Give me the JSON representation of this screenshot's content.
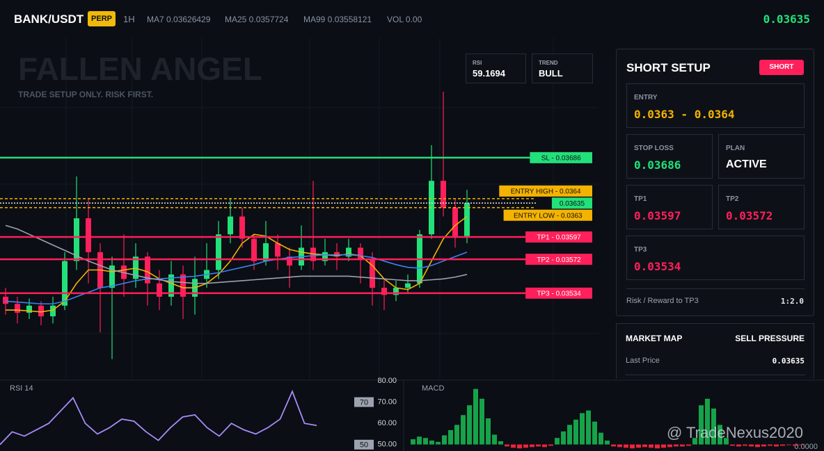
{
  "header": {
    "symbol": "BANK/USDT",
    "badge": "PERP",
    "interval": "1H",
    "ma7": "MA7 0.03626429",
    "ma25": "MA25 0.0357724",
    "ma99": "MA99 0.03558121",
    "vol": "VOL 0.00",
    "last": "0.03635"
  },
  "watermark": {
    "title": "FALLEN ANGEL",
    "subtitle": "TRADE SETUP ONLY. RISK FIRST."
  },
  "stats": [
    {
      "label": "RSI",
      "value": "59.1694"
    },
    {
      "label": "TREND",
      "value": "BULL"
    }
  ],
  "chart_data": [
    {
      "type": "candlestick",
      "up_color": "#22e07a",
      "down_color": "#ff1f5a",
      "ylim": [
        0.03438,
        0.0382
      ],
      "open": [
        0.0353,
        0.03522,
        0.03512,
        0.0352,
        0.03508,
        0.0352,
        0.0357,
        0.03618,
        0.0358,
        0.0354,
        0.03565,
        0.0355,
        0.03575,
        0.03545,
        0.0353,
        0.03555,
        0.0353,
        0.0355,
        0.0356,
        0.036,
        0.0362,
        0.03595,
        0.0357,
        0.0359,
        0.03575,
        0.03565,
        0.03585,
        0.0357,
        0.0358,
        0.03575,
        0.03585,
        0.03572,
        0.0354,
        0.03532,
        0.0354,
        0.03545,
        0.036,
        0.0366,
        0.0363,
        0.03598
      ],
      "high": [
        0.0354,
        0.0353,
        0.03528,
        0.03525,
        0.0353,
        0.0358,
        0.03665,
        0.0364,
        0.0359,
        0.03575,
        0.036,
        0.0359,
        0.0358,
        0.0356,
        0.0357,
        0.03565,
        0.03575,
        0.0359,
        0.03615,
        0.0364,
        0.0363,
        0.036,
        0.03615,
        0.036,
        0.03585,
        0.0361,
        0.0366,
        0.03595,
        0.0359,
        0.03595,
        0.0359,
        0.0358,
        0.0355,
        0.03548,
        0.03555,
        0.03605,
        0.037,
        0.0376,
        0.0364,
        0.0365
      ],
      "low": [
        0.0351,
        0.035,
        0.03505,
        0.03498,
        0.035,
        0.03515,
        0.0356,
        0.03545,
        0.0349,
        0.0346,
        0.0353,
        0.0354,
        0.0352,
        0.03515,
        0.0352,
        0.03505,
        0.0351,
        0.0354,
        0.0355,
        0.0359,
        0.03585,
        0.0356,
        0.03565,
        0.0356,
        0.0354,
        0.0356,
        0.0356,
        0.03565,
        0.0356,
        0.0357,
        0.03545,
        0.0352,
        0.03515,
        0.03525,
        0.03535,
        0.0354,
        0.03595,
        0.0362,
        0.03585,
        0.0359
      ],
      "close": [
        0.03522,
        0.03512,
        0.0352,
        0.03508,
        0.0352,
        0.0357,
        0.03618,
        0.0358,
        0.0354,
        0.03565,
        0.0355,
        0.03575,
        0.03545,
        0.0353,
        0.03555,
        0.0353,
        0.0355,
        0.0356,
        0.036,
        0.0362,
        0.03595,
        0.0357,
        0.0359,
        0.03575,
        0.03565,
        0.03585,
        0.0357,
        0.0358,
        0.03575,
        0.03585,
        0.03572,
        0.0354,
        0.03532,
        0.0354,
        0.03545,
        0.036,
        0.0366,
        0.0363,
        0.03598,
        0.03635
      ],
      "series": [
        {
          "color": "#f5b301",
          "values": [
            0.03515,
            0.03515,
            0.03514,
            0.03513,
            0.03515,
            0.03525,
            0.03545,
            0.0356,
            0.0356,
            0.03558,
            0.0356,
            0.03562,
            0.03558,
            0.0355,
            0.03545,
            0.0354,
            0.0354,
            0.03545,
            0.03555,
            0.0357,
            0.0359,
            0.036,
            0.03598,
            0.0359,
            0.03583,
            0.0358,
            0.03578,
            0.03577,
            0.03576,
            0.03578,
            0.03576,
            0.03565,
            0.0355,
            0.0354,
            0.03538,
            0.03545,
            0.0357,
            0.03595,
            0.0361,
            0.0362
          ]
        },
        {
          "color": "#3b82f6",
          "values": [
            0.03525,
            0.03524,
            0.03523,
            0.03522,
            0.03522,
            0.03525,
            0.0353,
            0.03535,
            0.0354,
            0.03542,
            0.03545,
            0.03548,
            0.0355,
            0.0355,
            0.03551,
            0.03552,
            0.03553,
            0.03555,
            0.03557,
            0.0356,
            0.03563,
            0.03566,
            0.0357,
            0.03572,
            0.03574,
            0.03575,
            0.03576,
            0.03577,
            0.03577,
            0.03577,
            0.03576,
            0.03574,
            0.0357,
            0.03566,
            0.03563,
            0.03562,
            0.03565,
            0.0357,
            0.03575,
            0.0358
          ]
        },
        {
          "color": "#9ca3af",
          "values": [
            0.0361,
            0.03606,
            0.036,
            0.03594,
            0.03588,
            0.03582,
            0.03576,
            0.0357,
            0.03565,
            0.0356,
            0.03557,
            0.03554,
            0.03551,
            0.03549,
            0.03547,
            0.03546,
            0.03545,
            0.03545,
            0.03546,
            0.03547,
            0.03548,
            0.03549,
            0.0355,
            0.03551,
            0.03552,
            0.03553,
            0.03553,
            0.03553,
            0.03553,
            0.03553,
            0.03552,
            0.03551,
            0.0355,
            0.03549,
            0.03548,
            0.03548,
            0.03549,
            0.0355,
            0.03552,
            0.03555
          ]
        }
      ],
      "levels": [
        {
          "label": "SL - 0.03686",
          "value": 0.03686,
          "color": "#22e07a",
          "line": "solid"
        },
        {
          "label": "ENTRY HIGH - 0.0364",
          "value": 0.0364,
          "color": "#f5b301",
          "line": "dashed"
        },
        {
          "label": "0.03635",
          "value": 0.03635,
          "color": "#22e07a",
          "line": "dotted"
        },
        {
          "label": "ENTRY LOW - 0.0363",
          "value": 0.0363,
          "color": "#f5b301",
          "line": "dashed"
        },
        {
          "label": "TP1 - 0.03597",
          "value": 0.03597,
          "color": "#ff1f5a",
          "line": "solid"
        },
        {
          "label": "TP2 - 0.03572",
          "value": 0.03572,
          "color": "#ff1f5a",
          "line": "solid"
        },
        {
          "label": "TP3 - 0.03534",
          "value": 0.03534,
          "color": "#ff1f5a",
          "line": "solid"
        }
      ]
    },
    {
      "type": "line",
      "title": "RSI 14",
      "color": "#a78bfa",
      "ylim": [
        47,
        80
      ],
      "values": [
        50,
        56,
        54,
        57,
        60,
        66,
        72,
        60,
        55,
        58,
        62,
        61,
        56,
        52,
        58,
        63,
        64,
        58,
        54,
        60,
        57,
        55,
        58,
        62,
        75,
        60,
        59
      ],
      "yticks": [
        {
          "value": 80,
          "label": "80.00"
        },
        {
          "value": 70,
          "label": "70.00"
        },
        {
          "value": 60,
          "label": "60.00"
        },
        {
          "value": 50,
          "label": "50.00"
        }
      ],
      "levels": [
        {
          "value": 70,
          "label": "70"
        },
        {
          "value": 50,
          "label": "50"
        }
      ]
    },
    {
      "type": "bar",
      "title": "MACD",
      "up_color": "#16a34a",
      "down_color": "#ef233c",
      "ylim": [
        -10,
        90
      ],
      "zero_label": "0.0000",
      "values": [
        8,
        12,
        10,
        6,
        4,
        14,
        22,
        30,
        45,
        60,
        85,
        70,
        40,
        15,
        5,
        -3,
        -5,
        -6,
        -5,
        -4,
        -3,
        -4,
        -2,
        10,
        20,
        30,
        38,
        48,
        52,
        35,
        18,
        6,
        -3,
        -4,
        -5,
        -6,
        -5,
        -4,
        -5,
        -6,
        -5,
        -4,
        -3,
        -3,
        -2,
        10,
        60,
        70,
        55,
        30,
        10,
        -2,
        -3,
        -2,
        -3,
        -4,
        -3,
        -2,
        -3,
        -2,
        -1,
        -2,
        -1
      ]
    }
  ],
  "setup": {
    "title": "SHORT SETUP",
    "badge": "SHORT",
    "cards": [
      {
        "label": "ENTRY",
        "value": "0.0363 - 0.0364"
      },
      {
        "label": "STOP LOSS",
        "value": "0.03686"
      },
      {
        "label": "PLAN",
        "value": "ACTIVE"
      },
      {
        "label": "TP1",
        "value": "0.03597"
      },
      {
        "label": "TP2",
        "value": "0.03572"
      },
      {
        "label": "TP3",
        "value": "0.03534"
      }
    ],
    "risk_label": "Risk / Reward to TP3",
    "risk_value": "1:2.0"
  },
  "market": {
    "title": "MARKET MAP",
    "status": "SELL PRESSURE",
    "row_label": "Last Price",
    "row_value": "0.03635"
  },
  "footer": {
    "handle": "@ TradeNexus2020"
  }
}
